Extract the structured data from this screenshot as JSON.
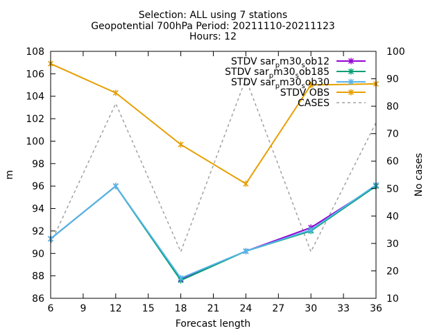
{
  "chart_data": {
    "type": "line",
    "title_lines": [
      "Selection: ALL using     7 stations",
      "Geopotential 700hPa   Period: 20211110-20211123",
      "Hours: 12"
    ],
    "xlabel": "Forecast length",
    "ylabel": "m",
    "y2label": "No cases",
    "xlim": [
      6,
      36
    ],
    "ylim": [
      86,
      108
    ],
    "y2lim": [
      10,
      100
    ],
    "x_ticks": [
      6,
      9,
      12,
      15,
      18,
      21,
      24,
      27,
      30,
      33,
      36
    ],
    "y_ticks": [
      86,
      88,
      90,
      92,
      94,
      96,
      98,
      100,
      102,
      104,
      106,
      108
    ],
    "y2_ticks": [
      10,
      20,
      30,
      40,
      50,
      60,
      70,
      80,
      90,
      100
    ],
    "grid": false,
    "legend_position": "top-right",
    "x": [
      6,
      12,
      18,
      24,
      30,
      36
    ],
    "series": [
      {
        "name": "STDV sar_m30_ob12",
        "legend_label": [
          "STDV sar",
          "p",
          "m30",
          "s",
          "ob12"
        ],
        "axis": "y",
        "color": "#9400d3",
        "marker": "x",
        "values": [
          91.3,
          96.0,
          87.7,
          90.2,
          92.3,
          96.0
        ]
      },
      {
        "name": "STDV sar_m30_ob185",
        "legend_label": [
          "STDV sar",
          "p",
          "m30",
          "s",
          "ob185"
        ],
        "axis": "y",
        "color": "#009e73",
        "marker": "x",
        "values": [
          91.3,
          96.0,
          87.6,
          90.2,
          92.0,
          96.0
        ]
      },
      {
        "name": "STDV sar_m30_ob30",
        "legend_label": [
          "STDV sar",
          "p",
          "m30",
          "s",
          "ob30"
        ],
        "axis": "y",
        "color": "#56b4e9",
        "marker": "x",
        "values": [
          91.3,
          96.0,
          87.8,
          90.2,
          92.1,
          96.1
        ]
      },
      {
        "name": "STDV OBS",
        "legend_label": [
          "STDV OBS"
        ],
        "axis": "y",
        "color": "#e69f00",
        "marker": "x",
        "values": [
          106.9,
          104.3,
          99.7,
          96.2,
          105.0,
          105.1
        ]
      },
      {
        "name": "CASES",
        "legend_label": [
          "CASES"
        ],
        "axis": "y2",
        "color": "#a0a0a0",
        "dashed": true,
        "values": [
          30,
          81,
          27,
          90,
          27,
          74
        ]
      }
    ]
  }
}
